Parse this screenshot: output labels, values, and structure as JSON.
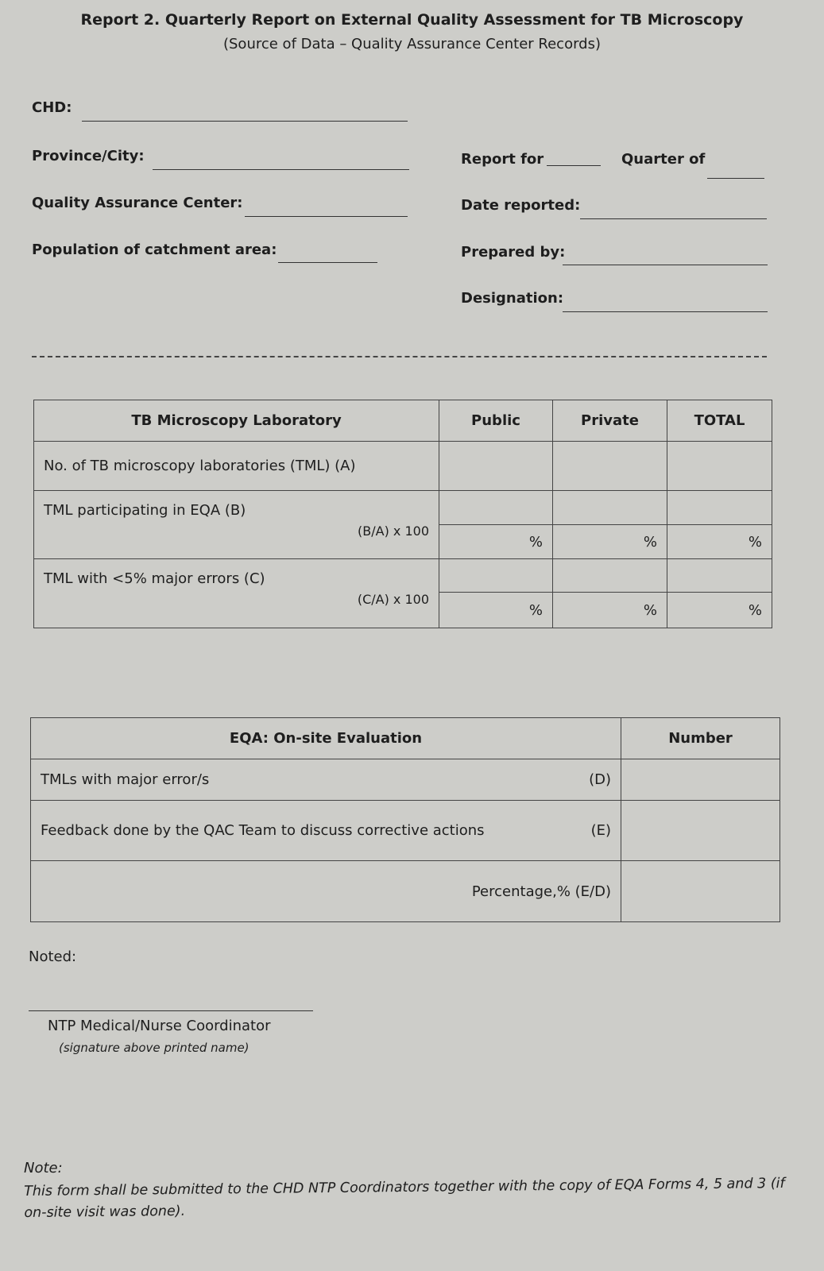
{
  "header": {
    "title": "Report 2. Quarterly Report on External Quality Assessment for TB Microscopy",
    "subtitle": "(Source of Data – Quality Assurance Center Records)"
  },
  "fields": {
    "chd": "CHD:",
    "province": "Province/City:",
    "qac": "Quality Assurance Center:",
    "population": "Population of catchment area:",
    "report_for": "Report for",
    "quarter_of": "Quarter of",
    "date_reported": "Date reported:",
    "prepared_by": "Prepared by:",
    "designation": "Designation:"
  },
  "table1": {
    "headers": [
      "TB Microscopy Laboratory",
      "Public",
      "Private",
      "TOTAL"
    ],
    "rows": {
      "a": "No. of TB microscopy laboratories (TML) (A)",
      "b": "TML  participating in EQA (B)",
      "b_formula": "(B/A) x 100",
      "c": "TML  with <5% major errors (C)",
      "c_formula": "(C/A) x 100"
    },
    "percent": "%"
  },
  "table2": {
    "headers": [
      "EQA: On-site Evaluation",
      "Number"
    ],
    "rows": {
      "d": "TMLs with major error/s",
      "d_code": "(D)",
      "e": "Feedback done by the QAC Team to discuss corrective actions",
      "e_code": "(E)",
      "pct": "Percentage,% (E/D)"
    }
  },
  "signature": {
    "noted": "Noted:",
    "role": "NTP Medical/Nurse Coordinator",
    "hint": "(signature above printed name)"
  },
  "note": {
    "label": "Note:",
    "text": "This form shall be submitted to the CHD NTP Coordinators together with the copy of EQA Forms 4, 5 and 3 (if on-site visit was done)."
  }
}
